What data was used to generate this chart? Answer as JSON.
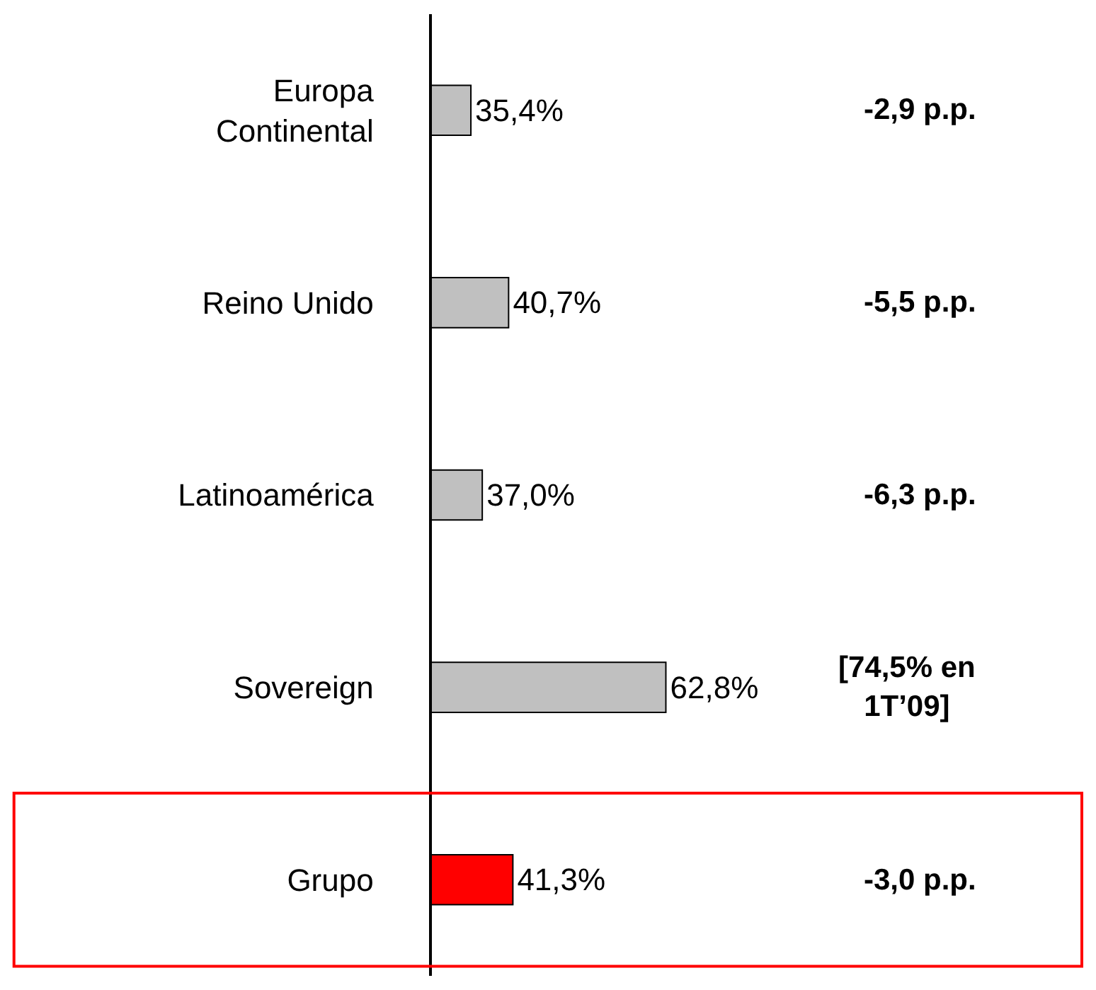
{
  "chart_data": {
    "type": "bar",
    "orientation": "horizontal",
    "categories": [
      "Europa Continental",
      "Reino Unido",
      "Latinoamérica",
      "Sovereign",
      "Grupo"
    ],
    "values": [
      35.4,
      40.7,
      37.0,
      62.8,
      41.3
    ],
    "value_labels": [
      "35,4%",
      "40,7%",
      "37,0%",
      "62,8%",
      "41,3%"
    ],
    "colors": [
      "#c0c0c0",
      "#c0c0c0",
      "#c0c0c0",
      "#c0c0c0",
      "#ff0000"
    ],
    "tick_labels": "y",
    "legend": false,
    "annotations": [
      "-2,9 p.p.",
      "-5,5 p.p.",
      "-6,3 p.p.",
      "[74,5% en 1T’09]",
      "-3,0 p.p."
    ]
  }
}
